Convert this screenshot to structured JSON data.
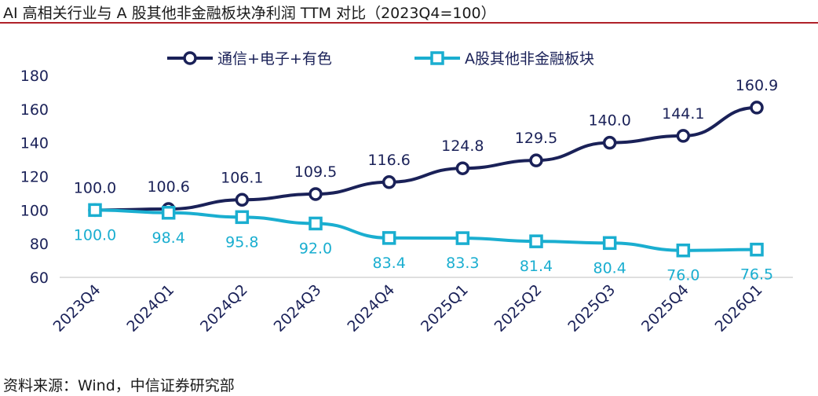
{
  "title": "AI 高相关行业与 A 股其他非金融板块净利润 TTM 对比（2023Q4=100）",
  "source": "资料来源：Wind，中信证券研究部",
  "chart_data": {
    "type": "line",
    "categories": [
      "2023Q4",
      "2024Q1",
      "2024Q2",
      "2024Q3",
      "2024Q4",
      "2025Q1",
      "2025Q2",
      "2025Q3",
      "2025Q4",
      "2026Q1"
    ],
    "ylim": [
      60,
      180
    ],
    "yticks": [
      60,
      80,
      100,
      120,
      140,
      160,
      180
    ],
    "grid": false,
    "legend_position": "top-center",
    "series": [
      {
        "name": "通信+电子+有色",
        "color": "#1a2158",
        "marker": "circle",
        "values": [
          100.0,
          100.6,
          106.1,
          109.5,
          116.6,
          124.8,
          129.5,
          140.0,
          144.1,
          160.9
        ],
        "labels": [
          "100.0",
          "100.6",
          "106.1",
          "109.5",
          "116.6",
          "124.8",
          "129.5",
          "140.0",
          "144.1",
          "160.9"
        ]
      },
      {
        "name": "A股其他非金融板块",
        "color": "#1aaed0",
        "marker": "square",
        "values": [
          100.0,
          98.4,
          95.8,
          92.0,
          83.4,
          83.3,
          81.4,
          80.4,
          76.0,
          76.5
        ],
        "labels": [
          "100.0",
          "98.4",
          "95.8",
          "92.0",
          "83.4",
          "83.3",
          "81.4",
          "80.4",
          "76.0",
          "76.5"
        ]
      }
    ]
  }
}
